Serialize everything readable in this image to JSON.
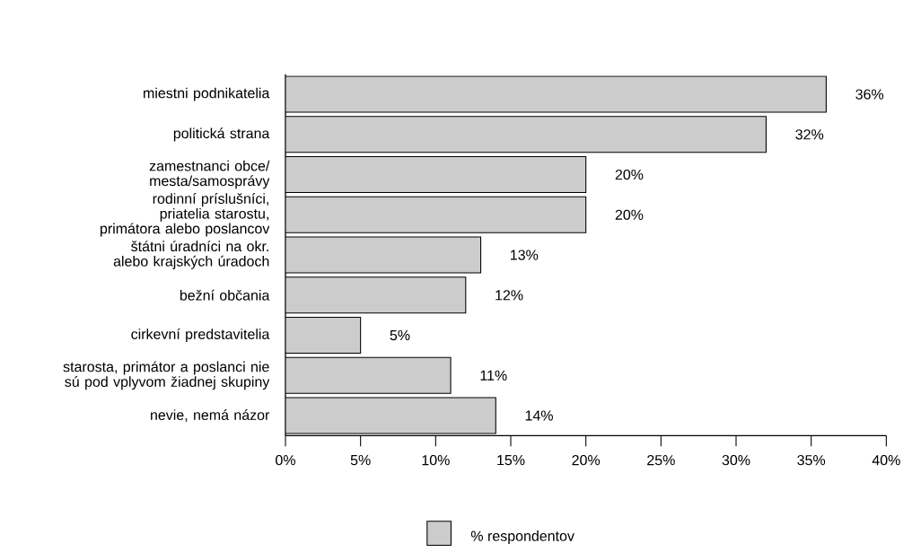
{
  "chart_data": {
    "type": "bar",
    "orientation": "horizontal",
    "categories": [
      "miestni podnikatelia",
      "politická strana",
      "zamestnanci obce/ mesta/samosprávy",
      "rodinní príslušníci, priatelia starostu, primátora alebo poslancov",
      "štátni úradníci na okr. alebo krajských úradoch",
      "bežní občania",
      "cirkevní predstavitelia",
      "starosta, primátor a poslanci nie sú pod vplyvom žiadnej skupiny",
      "nevie, nemá názor"
    ],
    "series": [
      {
        "name": "% respondentov",
        "color": "#cccccc",
        "values": [
          36,
          32,
          20,
          20,
          13,
          12,
          5,
          11,
          14
        ],
        "value_labels": [
          "36%",
          "32%",
          "20%",
          "20%",
          "13%",
          "12%",
          "5%",
          "11%",
          "14%"
        ]
      }
    ],
    "xlim": [
      0,
      40
    ],
    "xticks": [
      {
        "value": 0,
        "label": "0%"
      },
      {
        "value": 5,
        "label": "5%"
      },
      {
        "value": 10,
        "label": "10%"
      },
      {
        "value": 15,
        "label": "15%"
      },
      {
        "value": 20,
        "label": "20%"
      },
      {
        "value": 25,
        "label": "25%"
      },
      {
        "value": 30,
        "label": "30%"
      },
      {
        "value": 35,
        "label": "35%"
      },
      {
        "value": 40,
        "label": "40%"
      }
    ],
    "grid": false,
    "legend": "bottom"
  }
}
